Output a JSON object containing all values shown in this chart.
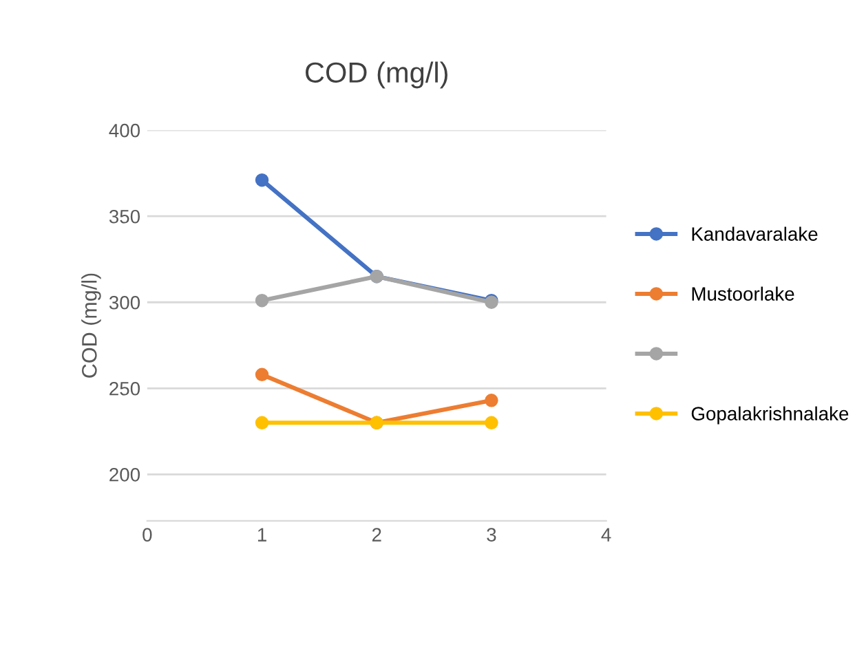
{
  "chart_data": {
    "type": "line",
    "title": "COD (mg/l)",
    "ylabel": "COD (mg/l)",
    "x": [
      1,
      2,
      3
    ],
    "series": [
      {
        "name": "Kandavaralake",
        "color": "#4472c4",
        "values": [
          371,
          315,
          301
        ]
      },
      {
        "name": "Mustoorlake",
        "color": "#ed7d31",
        "values": [
          258,
          230,
          243
        ]
      },
      {
        "color": "#a5a5a5",
        "values": [
          301,
          315,
          300
        ]
      },
      {
        "name": "Gopalakrishnalake",
        "color": "#ffc000",
        "values": [
          230,
          230,
          230
        ]
      }
    ],
    "xlim": [
      0,
      4
    ],
    "xticks": [
      0,
      1,
      2,
      3,
      4
    ],
    "ylim": [
      173,
      400
    ],
    "yticks": [
      200,
      250,
      300,
      350,
      400
    ],
    "grid": "y",
    "legend": "right",
    "marker": "circle",
    "line_style": "solid"
  }
}
